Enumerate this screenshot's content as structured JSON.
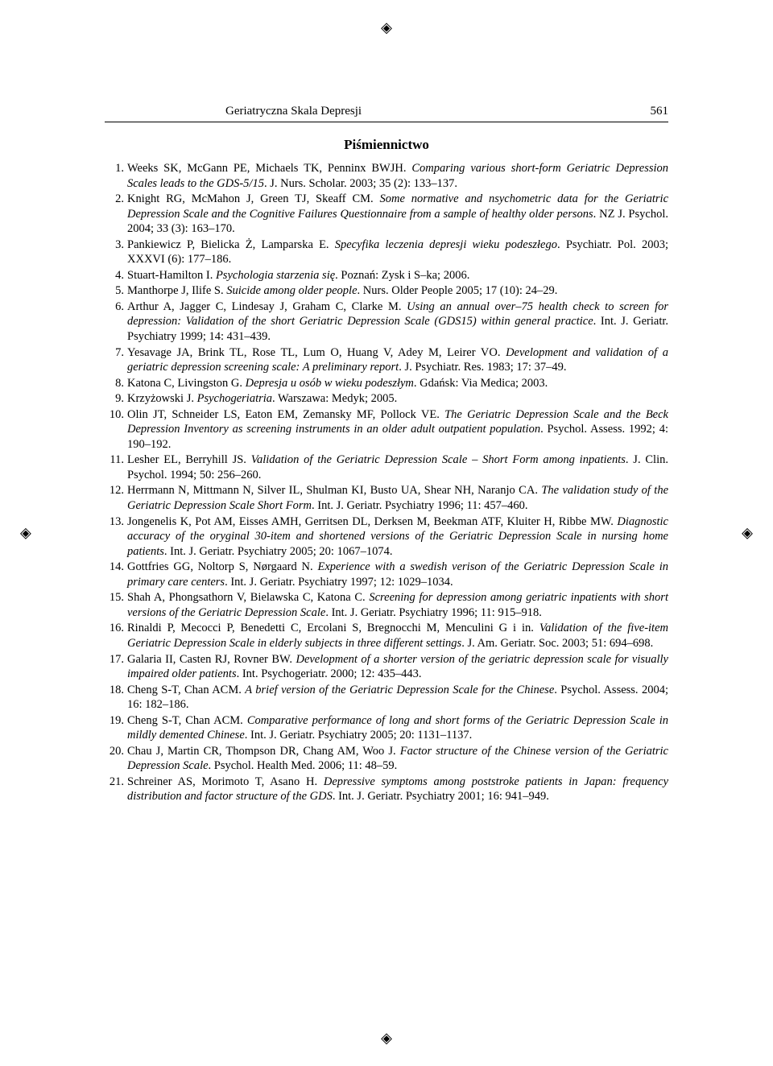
{
  "page": {
    "running_title": "Geriatryczna Skala Depresji",
    "page_number": "561",
    "section_title": "Piśmiennictwo"
  },
  "crop_marks": {
    "glyph": "◈"
  },
  "references": [
    {
      "n": "1.",
      "html": "Weeks SK, McGann PE, Michaels TK, Penninx BWJH. <i>Comparing various short-form Geriatric Depression Scales leads to the GDS-5/15</i>. J. Nurs. Scholar. 2003; 35 (2): 133–137."
    },
    {
      "n": "2.",
      "html": "Knight RG, McMahon J, Green TJ, Skeaff CM. <i>Some normative and nsychometric data for the Geriatric Depression Scale and the Cognitive Failures Questionnaire from a sample of healthy older persons</i>. NZ J. Psychol. 2004; 33 (3): 163–170."
    },
    {
      "n": "3.",
      "html": "Pankiewicz P, Bielicka Ż, Lamparska E. <i>Specyfika leczenia depresji wieku podeszłego</i>. Psychiatr. Pol. 2003; XXXVI (6): 177–186."
    },
    {
      "n": "4.",
      "html": "Stuart-Hamilton I. <i>Psychologia starzenia się</i>. Poznań: Zysk i S–ka; 2006."
    },
    {
      "n": "5.",
      "html": "Manthorpe J, Ilife S. <i>Suicide among older people</i>. Nurs. Older People 2005; 17 (10): 24–29."
    },
    {
      "n": "6.",
      "html": "Arthur A, Jagger C, Lindesay J, Graham C, Clarke M. <i>Using an annual over–75 health check to screen for depression: Validation of the short Geriatric Depression Scale (GDS15) within general practice</i>. Int. J. Geriatr. Psychiatry 1999; 14: 431–439."
    },
    {
      "n": "7.",
      "html": "Yesavage JA, Brink TL, Rose TL, Lum O, Huang V, Adey M, Leirer VO. <i>Development and validation of a geriatric depression screening scale: A preliminary report</i>. J. Psychiatr. Res. 1983; 17: 37–49."
    },
    {
      "n": "8.",
      "html": "Katona C, Livingston G. <i>Depresja u osób w wieku podeszłym</i>. Gdańsk: Via Medica; 2003."
    },
    {
      "n": "9.",
      "html": "Krzyżowski J. <i>Psychogeriatria</i>. Warszawa: Medyk; 2005."
    },
    {
      "n": "10.",
      "html": "Olin JT, Schneider LS, Eaton EM, Zemansky MF, Pollock VE. <i>The Geriatric Depression Scale and the Beck Depression Inventory as screening instruments in an older adult outpatient population</i>. Psychol. Assess. 1992; 4: 190–192."
    },
    {
      "n": "11.",
      "html": "Lesher EL, Berryhill JS. <i>Validation of the Geriatric Depression Scale – Short Form among inpatients</i>. J. Clin. Psychol. 1994; 50: 256–260."
    },
    {
      "n": "12.",
      "html": "Herrmann N, Mittmann N, Silver IL, Shulman KI, Busto UA, Shear NH, Naranjo CA. <i>The validation study of the Geriatric Depression Scale Short Form</i>. Int. J. Geriatr. Psychiatry 1996; 11: 457–460."
    },
    {
      "n": "13.",
      "html": "Jongenelis K, Pot AM, Eisses AMH, Gerritsen DL, Derksen M, Beekman ATF, Kluiter H, Ribbe MW. <i>Diagnostic accuracy of the oryginal 30-item and shortened versions of the Geriatric Depression Scale in nursing home patients</i>. Int. J. Geriatr. Psychiatry 2005; 20: 1067–1074."
    },
    {
      "n": "14.",
      "html": "Gottfries GG, Noltorp S, Nørgaard N. <i>Experience with a swedish verison of the Geriatric Depression Scale in primary care centers</i>. Int. J. Geriatr. Psychiatry 1997; 12: 1029–1034."
    },
    {
      "n": "15.",
      "html": "Shah A, Phongsathorn V, Bielawska C, Katona C. <i>Screening for depression among geriatric inpatients with short versions of the Geriatric Depression Scale</i>. Int. J. Geriatr. Psychiatry 1996; 11: 915–918."
    },
    {
      "n": "16.",
      "html": "Rinaldi P, Mecocci P, Benedetti C, Ercolani S, Bregnocchi M, Menculini G i in. <i>Validation of the five-item Geriatric Depression Scale in elderly subjects in three different settings</i>. J. Am. Geriatr. Soc. 2003; 51: 694–698."
    },
    {
      "n": "17.",
      "html": "Galaria II, Casten RJ, Rovner BW. <i>Development of a shorter version of the geriatric depression scale for visually impaired older patients</i>. Int. Psychogeriatr. 2000; 12: 435–443."
    },
    {
      "n": "18.",
      "html": "Cheng S-T, Chan ACM. <i>A brief version of the Geriatric Depression Scale for the Chinese</i>. Psychol. Assess. 2004; 16: 182–186."
    },
    {
      "n": "19.",
      "html": "Cheng S-T, Chan ACM. <i>Comparative performance of long and short forms of the Geriatric Depression Scale in mildly demented Chinese</i>. Int. J. Geriatr. Psychiatry 2005; 20: 1131–1137."
    },
    {
      "n": "20.",
      "html": "Chau J, Martin CR, Thompson DR, Chang AM, Woo J. <i>Factor structure of the Chinese version of the Geriatric Depression Scale</i>. Psychol. Health Med. 2006; 11: 48–59."
    },
    {
      "n": "21.",
      "html": "Schreiner AS, Morimoto T, Asano H. <i>Depressive symptoms among poststroke patients in Japan: frequency distribution and factor structure of the GDS</i>. Int. J. Geriatr. Psychiatry 2001; 16: 941–949."
    }
  ]
}
